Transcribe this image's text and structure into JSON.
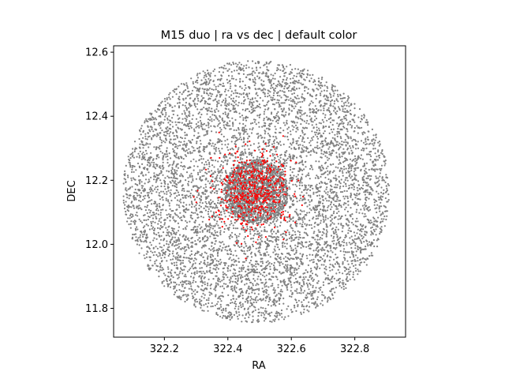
{
  "chart_data": {
    "type": "scatter",
    "title": "M15 duo | ra vs dec | default color",
    "xlabel": "RA",
    "ylabel": "DEC",
    "xlim": [
      322.04,
      322.96
    ],
    "ylim": [
      11.71,
      12.62
    ],
    "xticks": [
      {
        "value": 322.2,
        "label": "322.2"
      },
      {
        "value": 322.4,
        "label": "322.4"
      },
      {
        "value": 322.6,
        "label": "322.6"
      },
      {
        "value": 322.8,
        "label": "322.8"
      }
    ],
    "yticks": [
      {
        "value": 11.8,
        "label": "11.8"
      },
      {
        "value": 12.0,
        "label": "12.0"
      },
      {
        "value": 12.2,
        "label": "12.2"
      },
      {
        "value": 12.4,
        "label": "12.4"
      },
      {
        "value": 12.6,
        "label": "12.6"
      }
    ],
    "grid": false,
    "series": [
      {
        "color": "#808080",
        "distribution": {
          "shape": "disk",
          "center": [
            322.49,
            12.165
          ],
          "radius_ra": 0.42,
          "radius_dec": 0.41,
          "core_radius_ra": 0.1,
          "core_radius_dec": 0.1,
          "count": 6500,
          "core_count": 1500
        }
      },
      {
        "color": "#ff0000",
        "distribution": {
          "shape": "gaussian",
          "center": [
            322.48,
            12.17
          ],
          "sigma_ra": 0.06,
          "sigma_dec": 0.06,
          "count": 500
        }
      }
    ]
  }
}
